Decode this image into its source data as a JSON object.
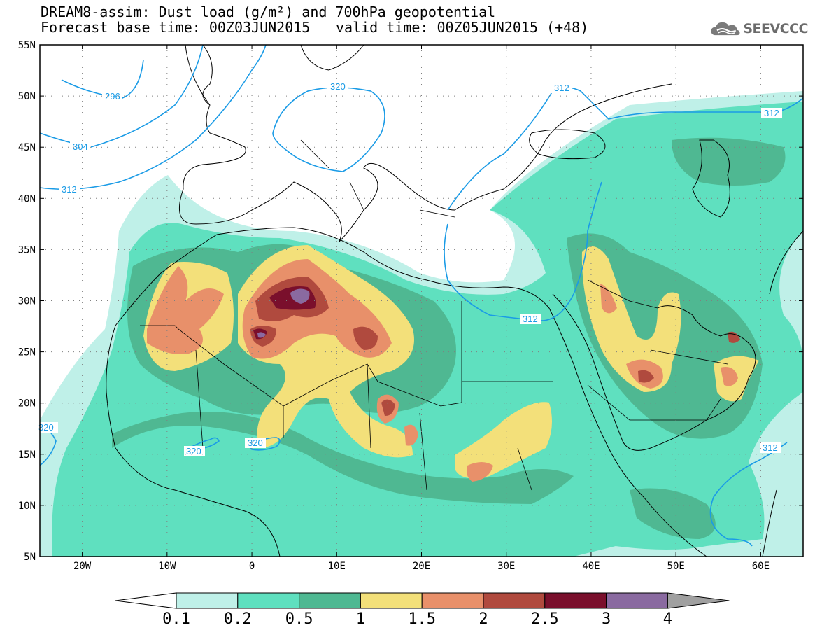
{
  "title": {
    "line1": "DREAM8-assim: Dust load (g/m²) and 700hPa geopotential",
    "line2": "Forecast base time: 00Z03JUN2015",
    "line2b": "valid time: 00Z05JUN2015 (+48)"
  },
  "logo": {
    "text": "SEEVCCC",
    "icon": "cloud-icon"
  },
  "axes": {
    "lat_labels": [
      "55N",
      "50N",
      "45N",
      "40N",
      "35N",
      "30N",
      "25N",
      "20N",
      "15N",
      "10N",
      "5N"
    ],
    "lon_labels": [
      "20W",
      "10W",
      "0",
      "10E",
      "20E",
      "30E",
      "40E",
      "50E",
      "60E"
    ],
    "lat_range": [
      5,
      55
    ],
    "lon_range": [
      -25,
      65
    ],
    "grid": "dotted"
  },
  "contour_labels": [
    {
      "id": "c296",
      "text": "296"
    },
    {
      "id": "c304",
      "text": "304"
    },
    {
      "id": "c312w",
      "text": "312"
    },
    {
      "id": "c320n",
      "text": "320"
    },
    {
      "id": "c312n",
      "text": "312"
    },
    {
      "id": "c312ne",
      "text": "312"
    },
    {
      "id": "c312m",
      "text": "312"
    },
    {
      "id": "c320w",
      "text": "320"
    },
    {
      "id": "c320s1",
      "text": "320"
    },
    {
      "id": "c320s2",
      "text": "320"
    },
    {
      "id": "c312se",
      "text": "312"
    }
  ],
  "colorbar": {
    "levels": [
      "0.1",
      "0.2",
      "0.5",
      "1",
      "1.5",
      "2",
      "2.5",
      "3",
      "4"
    ],
    "colors": {
      "low_arrow": "#ffffff",
      "c1": "#bff0e8",
      "c2": "#5fe0bf",
      "c3": "#4fb892",
      "c4": "#f3e07a",
      "c5": "#e8906a",
      "c6": "#b04a3e",
      "c7": "#7a0f2c",
      "c8": "#8a6aa0",
      "high_arrow": "#a0a0a0"
    }
  },
  "colors": {
    "contour": "#1a9be6",
    "coast": "#000000"
  }
}
